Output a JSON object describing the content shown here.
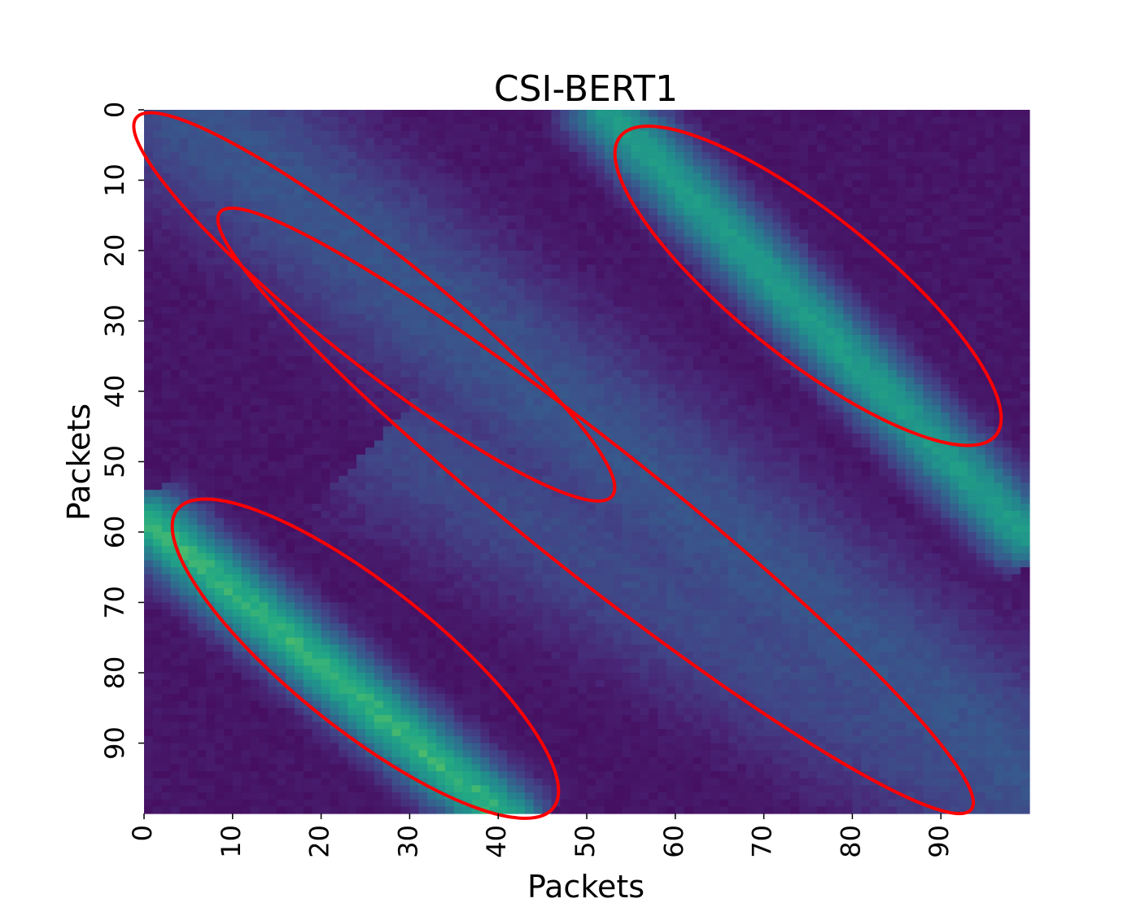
{
  "chart_data": {
    "type": "heatmap",
    "title": "CSI-BERT1",
    "xlabel": "Packets",
    "ylabel": "Packets",
    "rows": 100,
    "cols": 100,
    "x_ticks": [
      "0",
      "10",
      "20",
      "30",
      "40",
      "50",
      "60",
      "70",
      "80",
      "90"
    ],
    "y_ticks": [
      "0",
      "10",
      "20",
      "30",
      "40",
      "50",
      "60",
      "70",
      "80",
      "90"
    ],
    "colormap": "viridis",
    "colorbar": false,
    "value_range": [
      0,
      1
    ],
    "bands": [
      {
        "description": "upper-right bright diagonal",
        "start": [
          52,
          0
        ],
        "end": [
          99,
          60
        ],
        "peak": 0.65,
        "width": 3.5
      },
      {
        "description": "lower-left bright diagonal",
        "start": [
          0,
          58
        ],
        "end": [
          40,
          100
        ],
        "peak": 0.75,
        "width": 3.5
      },
      {
        "description": "upper-left faint diagonal",
        "start": [
          5,
          0
        ],
        "end": [
          100,
          95
        ],
        "peak": 0.3,
        "width": 9
      },
      {
        "description": "lower-right faint diagonal",
        "start": [
          30,
          48
        ],
        "end": [
          100,
          100
        ],
        "peak": 0.25,
        "width": 9
      }
    ],
    "highlight_ellipses": [
      {
        "center": [
          26,
          28
        ],
        "rx": 38,
        "ry": 7
      },
      {
        "center": [
          75,
          25
        ],
        "rx": 30,
        "ry": 9
      },
      {
        "center": [
          25,
          78
        ],
        "rx": 30,
        "ry": 9
      },
      {
        "center": [
          51,
          57
        ],
        "rx": 60,
        "ry": 8
      }
    ],
    "ellipse_color": "#ff0000"
  }
}
